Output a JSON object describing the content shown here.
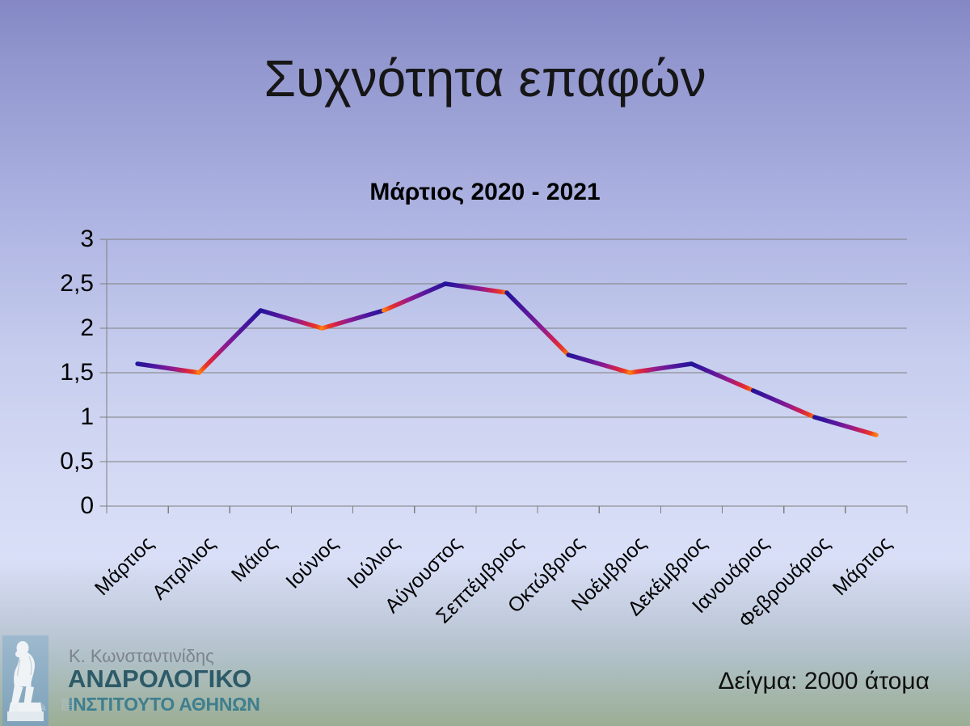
{
  "slide": {
    "title": "Συχνότητα επαφών",
    "sample_note": "Δείγμα: 2000 άτομα",
    "background_colors": {
      "top": "#8487C4",
      "middle": "#CDD4F2",
      "lightest": "#D9DFF7",
      "bottom_green": "#9BAE94"
    }
  },
  "logo": {
    "person": "Κ. Κωνσταντινίδης",
    "org_line1": "ΑΝΔΡΟΛΟΓΙΚΟ",
    "org_line2": "ΙΝΣΤΙΤΟΥΤΟ ΑΘΗΝΩΝ",
    "colors": {
      "panel": "#8FAFC6",
      "person_text": "#7C838C",
      "org1_text": "#2D5A68",
      "org2_text": "#3F7E8E",
      "statue": "#EFF3F6"
    }
  },
  "nav_controls": {
    "back_icon": "◀",
    "pen_icon": "✎",
    "menu_icon": "▤"
  },
  "chart_data": {
    "type": "line",
    "title": "Μάρτιος 2020 - 2021",
    "categories": [
      "Μάρτιος",
      "Απρίλιος",
      "Μάιος",
      "Ιούνιος",
      "Ιούλιος",
      "Αύγουστος",
      "Σεπτέμβριος",
      "Οκτώβριος",
      "Νοέμβριος",
      "Δεκέμβριος",
      "Ιανουάριος",
      "Φεβρουάριος",
      "Μάρτιος"
    ],
    "values": [
      1.6,
      1.5,
      2.2,
      2.0,
      2.2,
      2.5,
      2.4,
      1.7,
      1.5,
      1.6,
      1.3,
      1.0,
      0.8
    ],
    "xlabel": "",
    "ylabel": "",
    "ylim": [
      0,
      3
    ],
    "ytick_step": 0.5,
    "ytick_labels": [
      "0",
      "0,5",
      "1",
      "1,5",
      "2",
      "2,5",
      "3"
    ],
    "decimal_separator": ",",
    "grid": true,
    "legend": "none",
    "x_label_rotation_deg": -45,
    "line_width": 5.5,
    "gridline_color": "#7F7F7F",
    "line_gradient": [
      {
        "offset": 0,
        "color": "#23139A"
      },
      {
        "offset": 0.32,
        "color": "#55179D"
      },
      {
        "offset": 0.58,
        "color": "#8F1B90"
      },
      {
        "offset": 0.78,
        "color": "#D2204C"
      },
      {
        "offset": 0.9,
        "color": "#EA3A22"
      },
      {
        "offset": 1,
        "color": "#FF7E12"
      }
    ]
  }
}
